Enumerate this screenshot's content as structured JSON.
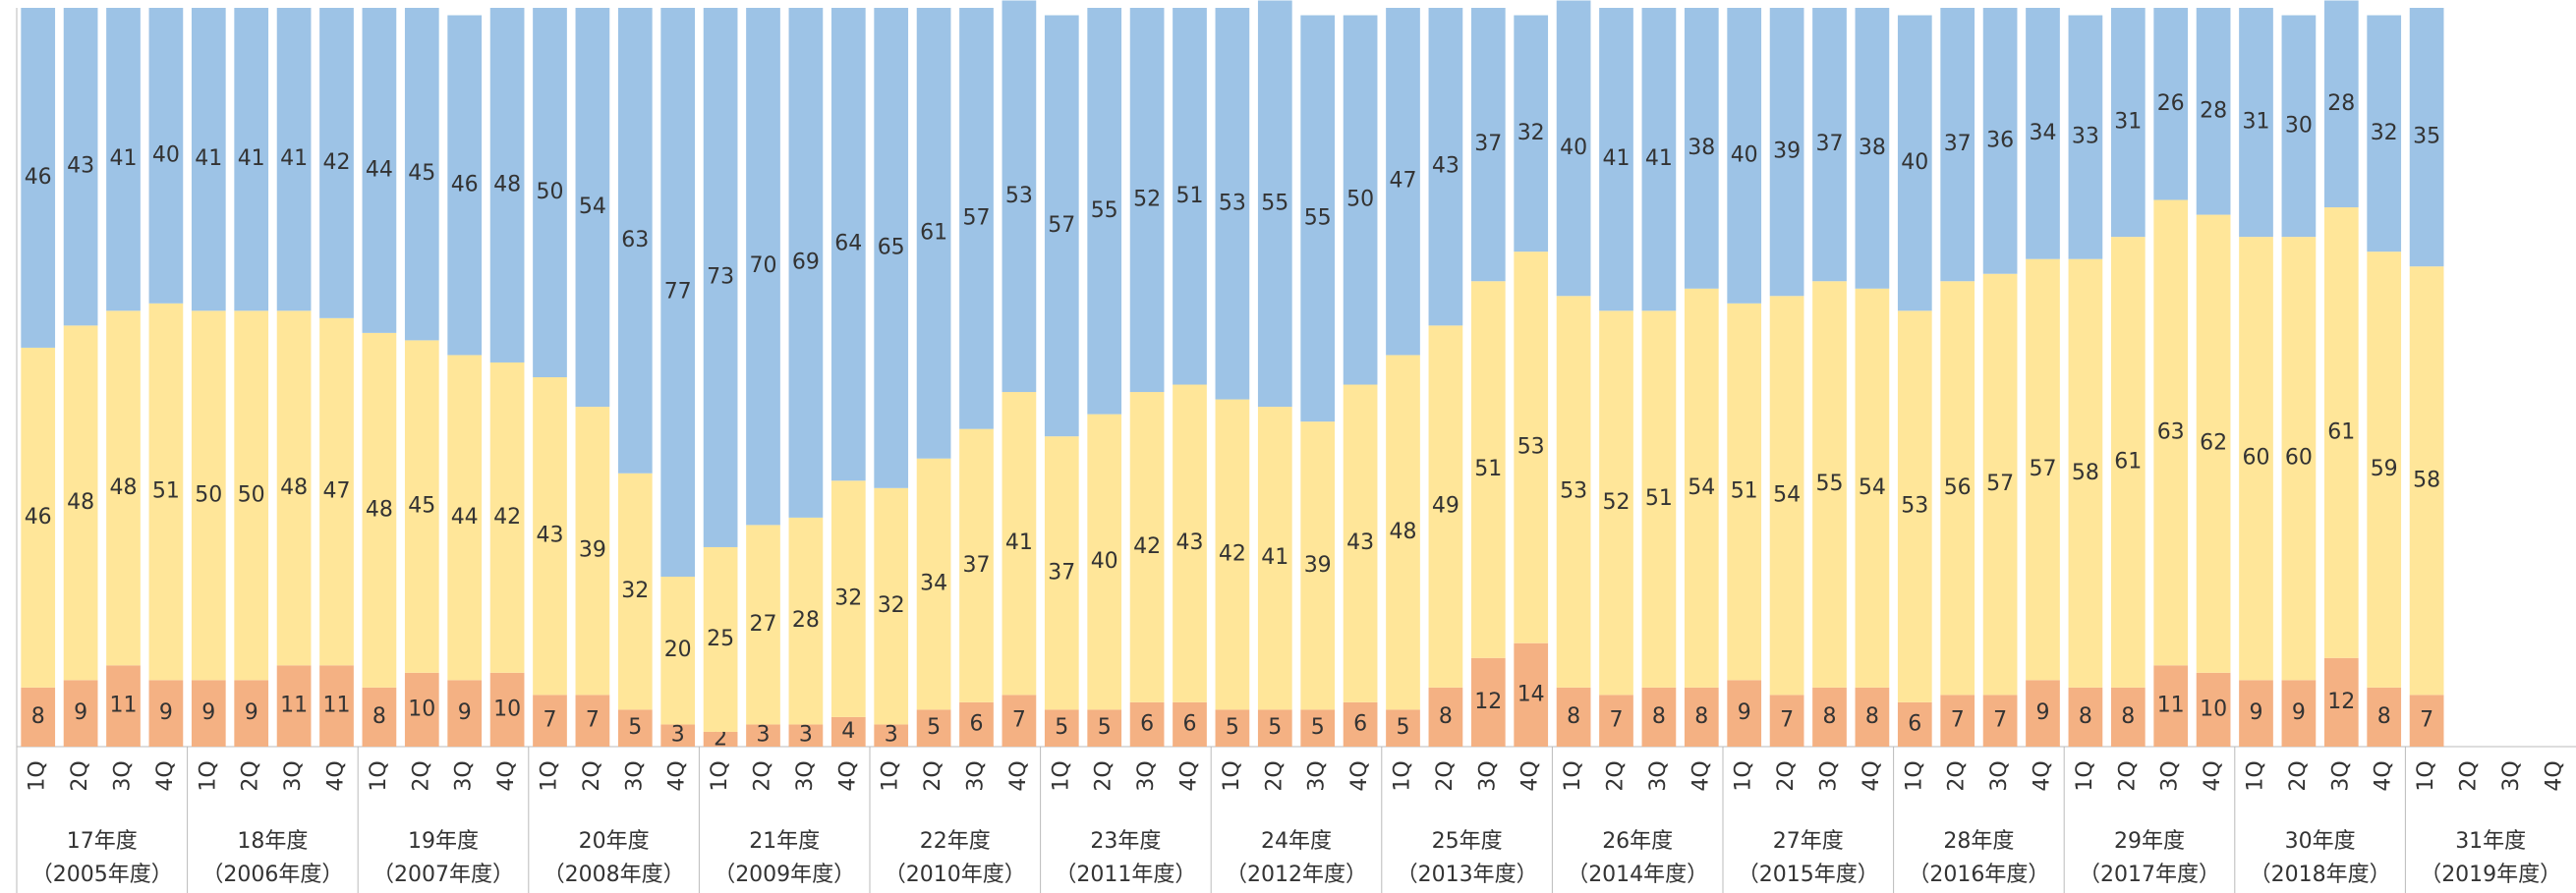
{
  "chart_data": {
    "type": "stacked_bar",
    "categories": [
      "1Q",
      "2Q",
      "3Q",
      "4Q",
      "1Q",
      "2Q",
      "3Q",
      "4Q",
      "1Q",
      "2Q",
      "3Q",
      "4Q",
      "1Q",
      "2Q",
      "3Q",
      "4Q",
      "1Q",
      "2Q",
      "3Q",
      "4Q",
      "1Q",
      "2Q",
      "3Q",
      "4Q",
      "1Q",
      "2Q",
      "3Q",
      "4Q",
      "1Q",
      "2Q",
      "3Q",
      "4Q",
      "1Q",
      "2Q",
      "3Q",
      "4Q",
      "1Q",
      "2Q",
      "3Q",
      "4Q",
      "1Q",
      "2Q",
      "3Q",
      "4Q",
      "1Q",
      "2Q",
      "3Q",
      "4Q",
      "1Q",
      "2Q",
      "3Q",
      "4Q",
      "1Q",
      "2Q",
      "3Q",
      "4Q",
      "1Q",
      "2Q",
      "3Q",
      "4Q"
    ],
    "groups": [
      {
        "label": "17年度",
        "sublabel": "（2005年度）"
      },
      {
        "label": "18年度",
        "sublabel": "（2006年度）"
      },
      {
        "label": "19年度",
        "sublabel": "（2007年度）"
      },
      {
        "label": "20年度",
        "sublabel": "（2008年度）"
      },
      {
        "label": "21年度",
        "sublabel": "（2009年度）"
      },
      {
        "label": "22年度",
        "sublabel": "（2010年度）"
      },
      {
        "label": "23年度",
        "sublabel": "（2011年度）"
      },
      {
        "label": "24年度",
        "sublabel": "（2012年度）"
      },
      {
        "label": "25年度",
        "sublabel": "（2013年度）"
      },
      {
        "label": "26年度",
        "sublabel": "（2014年度）"
      },
      {
        "label": "27年度",
        "sublabel": "（2015年度）"
      },
      {
        "label": "28年度",
        "sublabel": "（2016年度）"
      },
      {
        "label": "29年度",
        "sublabel": "（2017年度）"
      },
      {
        "label": "30年度",
        "sublabel": "（2018年度）"
      },
      {
        "label": "31年度",
        "sublabel": "（2019年度）"
      }
    ],
    "series": [
      {
        "color": "#f4b183",
        "values": [
          8,
          9,
          11,
          9,
          9,
          9,
          11,
          11,
          8,
          10,
          9,
          10,
          7,
          7,
          5,
          3,
          2,
          3,
          3,
          4,
          3,
          5,
          6,
          7,
          5,
          5,
          6,
          6,
          5,
          5,
          5,
          6,
          5,
          8,
          12,
          14,
          8,
          7,
          8,
          8,
          9,
          7,
          8,
          8,
          6,
          7,
          7,
          9,
          8,
          8,
          11,
          10,
          9,
          9,
          12,
          8,
          7,
          null,
          null,
          null
        ]
      },
      {
        "color": "#ffe699",
        "values": [
          46,
          48,
          48,
          51,
          50,
          50,
          48,
          47,
          48,
          45,
          44,
          42,
          43,
          39,
          32,
          20,
          25,
          27,
          28,
          32,
          32,
          34,
          37,
          41,
          37,
          40,
          42,
          43,
          42,
          41,
          39,
          43,
          48,
          49,
          51,
          53,
          53,
          52,
          51,
          54,
          51,
          54,
          55,
          54,
          53,
          56,
          57,
          57,
          58,
          61,
          63,
          62,
          60,
          60,
          61,
          59,
          58,
          null,
          null,
          null
        ]
      },
      {
        "color": "#9dc3e6",
        "values": [
          46,
          43,
          41,
          40,
          41,
          41,
          41,
          42,
          44,
          45,
          46,
          48,
          50,
          54,
          63,
          77,
          73,
          70,
          69,
          64,
          65,
          61,
          57,
          53,
          57,
          55,
          52,
          51,
          53,
          55,
          55,
          50,
          47,
          43,
          37,
          32,
          40,
          41,
          41,
          38,
          40,
          39,
          37,
          38,
          40,
          37,
          36,
          34,
          33,
          31,
          26,
          28,
          31,
          30,
          28,
          32,
          35,
          null,
          null,
          null
        ]
      }
    ],
    "ylim": [
      0,
      100
    ]
  }
}
